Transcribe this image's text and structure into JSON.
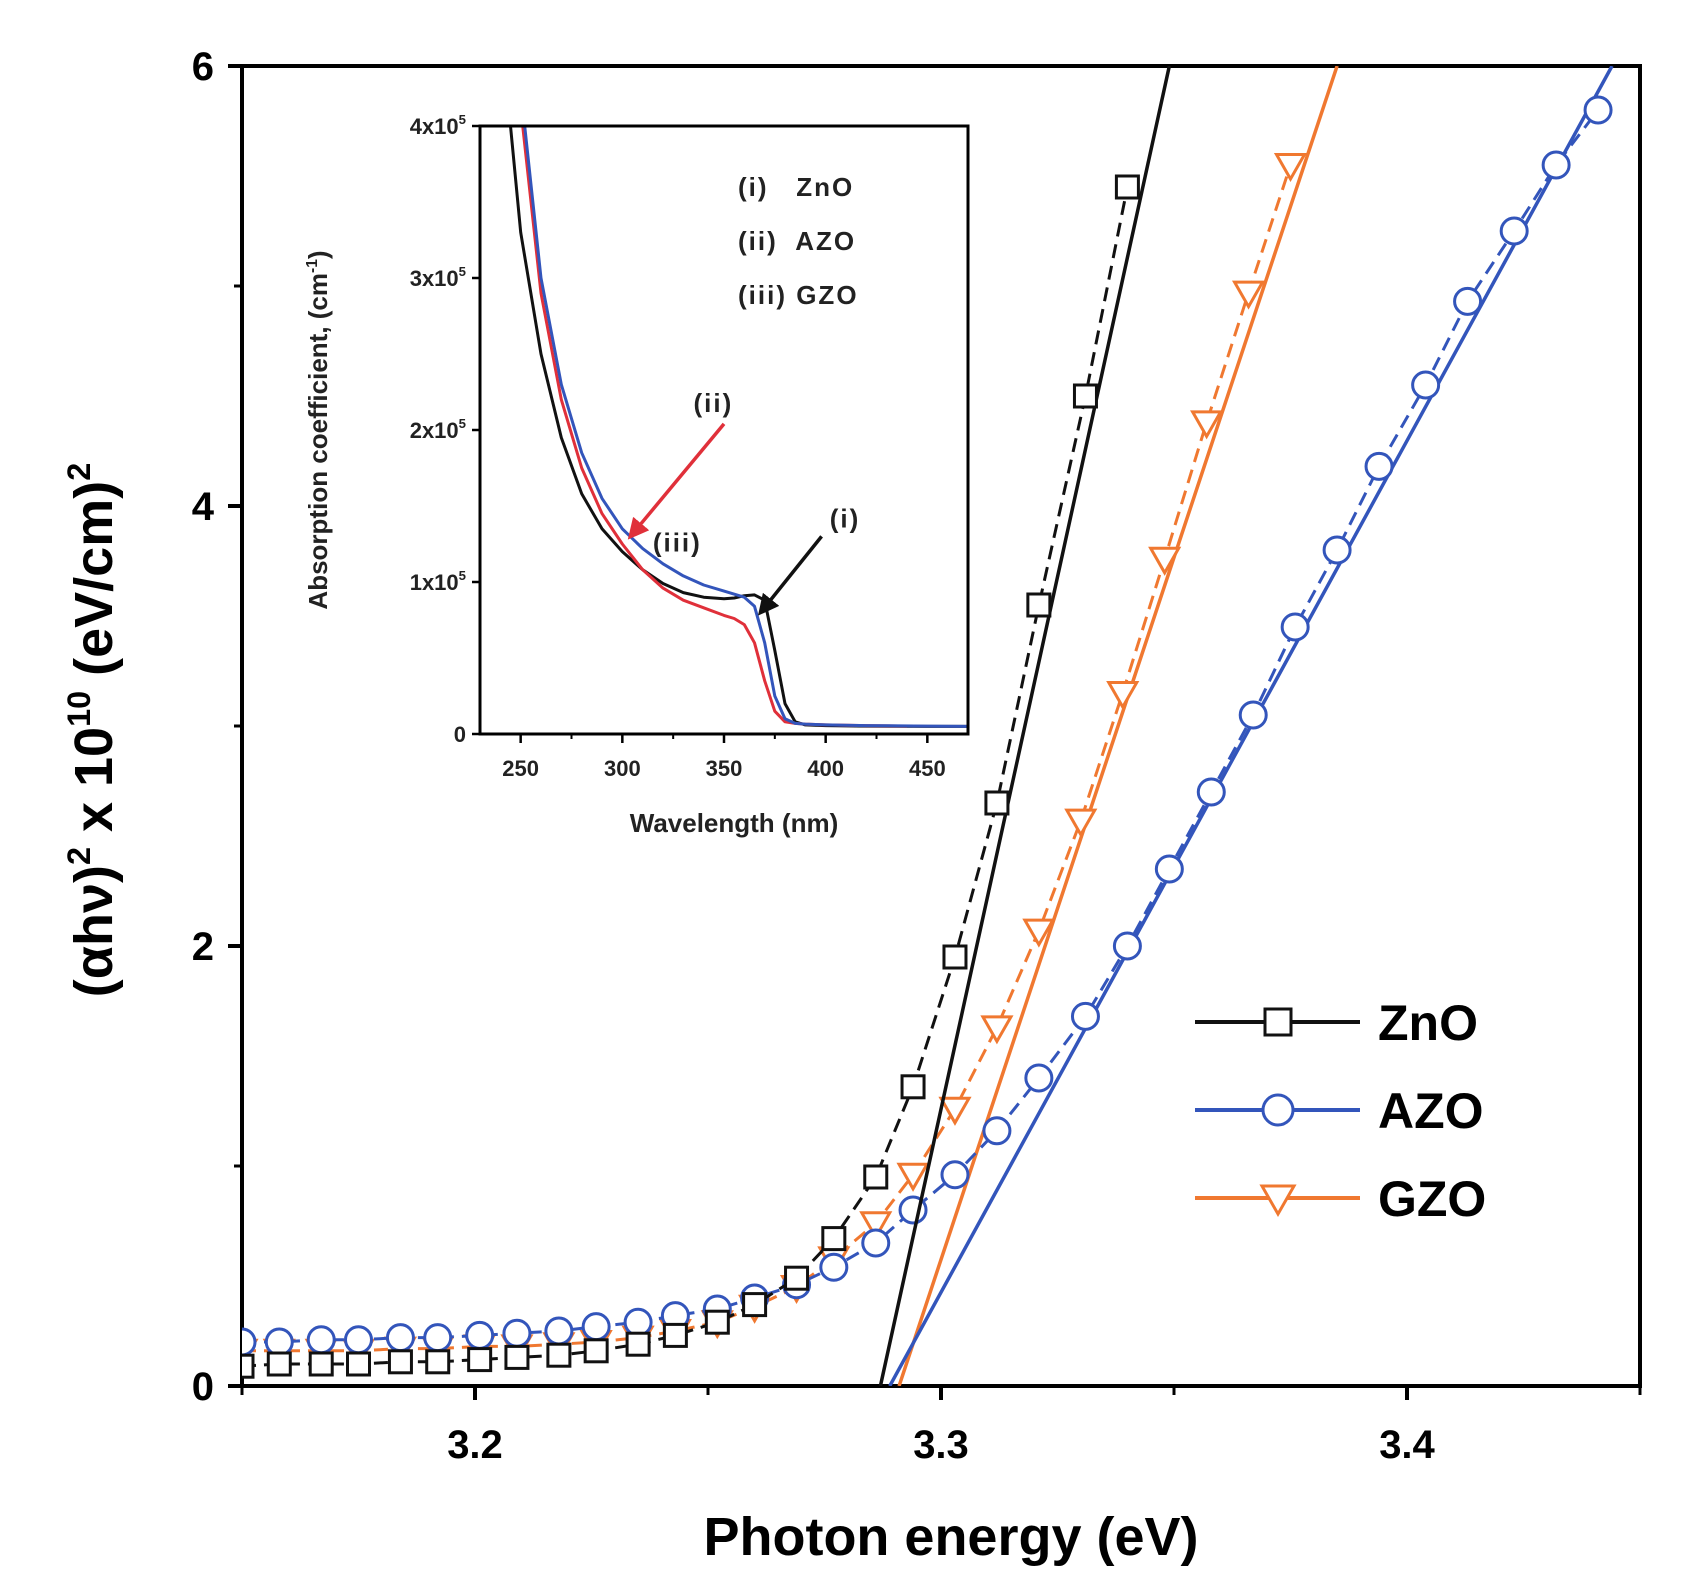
{
  "chart_data": [
    {
      "id": "main",
      "type": "scatter",
      "xlabel": "Photon energy (eV)",
      "ylabel": {
        "prefix": "(αhν)",
        "sup1": "2",
        "mid": " x 10",
        "sup2": "10",
        "unit": " (eV/cm)",
        "sup3": "2"
      },
      "xlim": [
        3.15,
        3.45
      ],
      "ylim": [
        0,
        6
      ],
      "xticks": [
        3.2,
        3.3,
        3.4
      ],
      "xtick_labels": [
        "3.2",
        "3.3",
        "3.4"
      ],
      "yticks": [
        0,
        2,
        4,
        6
      ],
      "ytick_labels": [
        "0",
        "2",
        "4",
        "6"
      ],
      "legend": {
        "position": "bottom-right",
        "entries": [
          "ZnO",
          "AZO",
          "GZO"
        ]
      },
      "series": [
        {
          "name": "ZnO",
          "color": "#111111",
          "marker": "square",
          "x": [
            3.15,
            3.158,
            3.167,
            3.175,
            3.184,
            3.192,
            3.201,
            3.209,
            3.218,
            3.226,
            3.235,
            3.243,
            3.252,
            3.26,
            3.269,
            3.277,
            3.286,
            3.294,
            3.303,
            3.312,
            3.321,
            3.331,
            3.34
          ],
          "y": [
            0.09,
            0.1,
            0.1,
            0.1,
            0.11,
            0.11,
            0.12,
            0.13,
            0.14,
            0.16,
            0.19,
            0.23,
            0.29,
            0.37,
            0.49,
            0.67,
            0.95,
            1.36,
            1.95,
            2.65,
            3.55,
            4.5,
            5.45
          ],
          "fit": {
            "x": [
              3.287,
              3.349
            ],
            "y": [
              0,
              6
            ]
          }
        },
        {
          "name": "AZO",
          "color": "#3355bb",
          "marker": "circle",
          "x": [
            3.15,
            3.158,
            3.167,
            3.175,
            3.184,
            3.192,
            3.201,
            3.209,
            3.218,
            3.226,
            3.235,
            3.243,
            3.252,
            3.26,
            3.269,
            3.277,
            3.286,
            3.294,
            3.303,
            3.312,
            3.321,
            3.331,
            3.34,
            3.349,
            3.358,
            3.367,
            3.376,
            3.385,
            3.394,
            3.404,
            3.413,
            3.423,
            3.432,
            3.441
          ],
          "y": [
            0.2,
            0.2,
            0.21,
            0.21,
            0.22,
            0.22,
            0.23,
            0.24,
            0.25,
            0.27,
            0.29,
            0.32,
            0.35,
            0.4,
            0.46,
            0.54,
            0.65,
            0.8,
            0.96,
            1.16,
            1.4,
            1.68,
            2.0,
            2.35,
            2.7,
            3.05,
            3.45,
            3.8,
            4.18,
            4.55,
            4.93,
            5.25,
            5.55,
            5.8
          ],
          "fit": {
            "x": [
              3.289,
              3.444
            ],
            "y": [
              0,
              6
            ]
          }
        },
        {
          "name": "GZO",
          "color": "#f07830",
          "marker": "triangle-down",
          "x": [
            3.15,
            3.158,
            3.167,
            3.175,
            3.184,
            3.192,
            3.201,
            3.209,
            3.218,
            3.226,
            3.235,
            3.243,
            3.252,
            3.26,
            3.269,
            3.277,
            3.286,
            3.294,
            3.303,
            3.312,
            3.321,
            3.33,
            3.339,
            3.348,
            3.357,
            3.366,
            3.375
          ],
          "y": [
            0.16,
            0.16,
            0.16,
            0.16,
            0.17,
            0.17,
            0.18,
            0.18,
            0.19,
            0.2,
            0.22,
            0.25,
            0.29,
            0.36,
            0.45,
            0.58,
            0.74,
            0.96,
            1.26,
            1.63,
            2.07,
            2.57,
            3.15,
            3.76,
            4.38,
            4.97,
            5.55
          ],
          "fit": {
            "x": [
              3.291,
              3.385
            ],
            "y": [
              0,
              6
            ]
          }
        }
      ]
    },
    {
      "id": "inset",
      "type": "line",
      "xlabel": "Wavelength (nm)",
      "ylabel": {
        "text": "Absorption coefficient, (cm",
        "sup": "-1",
        "close": ")"
      },
      "xlim": [
        230,
        470
      ],
      "ylim": [
        0,
        400000
      ],
      "xticks": [
        250,
        300,
        350,
        400,
        450
      ],
      "xtick_labels": [
        "250",
        "300",
        "350",
        "400",
        "450"
      ],
      "yticks": [
        0,
        100000,
        200000,
        300000,
        400000
      ],
      "ytick_labels": [
        {
          "base": "0",
          "exp": ""
        },
        {
          "base": "1x10",
          "exp": "5"
        },
        {
          "base": "2x10",
          "exp": "5"
        },
        {
          "base": "3x10",
          "exp": "5"
        },
        {
          "base": "4x10",
          "exp": "5"
        }
      ],
      "legend_text": [
        "(i)   ZnO",
        "(ii)  AZO",
        "(iii) GZO"
      ],
      "annotations": [
        {
          "text": "(i)",
          "x": 402,
          "y": 136000,
          "arrow_from": [
            398,
            130000
          ],
          "arrow_to": [
            368,
            80000
          ],
          "color": "#111111"
        },
        {
          "text": "(ii)",
          "x": 335,
          "y": 212000,
          "arrow_from": [
            350,
            204000
          ],
          "arrow_to": [
            304,
            130000
          ],
          "color": "#e0303a"
        },
        {
          "text": "(iii)",
          "x": 315,
          "y": 120000,
          "arrow_from": null,
          "arrow_to": null,
          "color": "#111111"
        }
      ],
      "series": [
        {
          "name": "ZnO",
          "color": "#111111",
          "x": [
            245,
            250,
            260,
            270,
            280,
            290,
            300,
            310,
            320,
            330,
            340,
            350,
            355,
            360,
            365,
            370,
            375,
            380,
            385,
            390,
            400,
            420,
            450,
            470
          ],
          "y": [
            400000,
            330000,
            250000,
            195000,
            158000,
            135000,
            120000,
            108000,
            99000,
            93000,
            90000,
            89000,
            89500,
            91000,
            91500,
            88000,
            55000,
            20000,
            8000,
            6000,
            5500,
            5200,
            5000,
            5000
          ]
        },
        {
          "name": "AZO",
          "color": "#3355bb",
          "x": [
            252,
            260,
            270,
            280,
            290,
            300,
            310,
            320,
            330,
            340,
            350,
            360,
            365,
            370,
            375,
            380,
            385,
            390,
            400,
            420,
            450,
            470
          ],
          "y": [
            400000,
            300000,
            230000,
            185000,
            155000,
            135000,
            122000,
            112000,
            104000,
            98000,
            94000,
            90000,
            84000,
            60000,
            25000,
            10000,
            7000,
            6500,
            6000,
            5500,
            5200,
            5000
          ]
        },
        {
          "name": "GZO",
          "color": "#e0303a",
          "x": [
            251,
            260,
            270,
            280,
            290,
            300,
            310,
            320,
            330,
            340,
            350,
            355,
            360,
            365,
            370,
            375,
            380,
            385,
            390,
            400,
            420,
            440
          ],
          "y": [
            400000,
            290000,
            220000,
            175000,
            145000,
            125000,
            108000,
            96000,
            88000,
            83000,
            78000,
            76000,
            72000,
            60000,
            35000,
            15000,
            8000,
            7000,
            6500,
            6000,
            5500,
            5200
          ]
        }
      ]
    }
  ]
}
